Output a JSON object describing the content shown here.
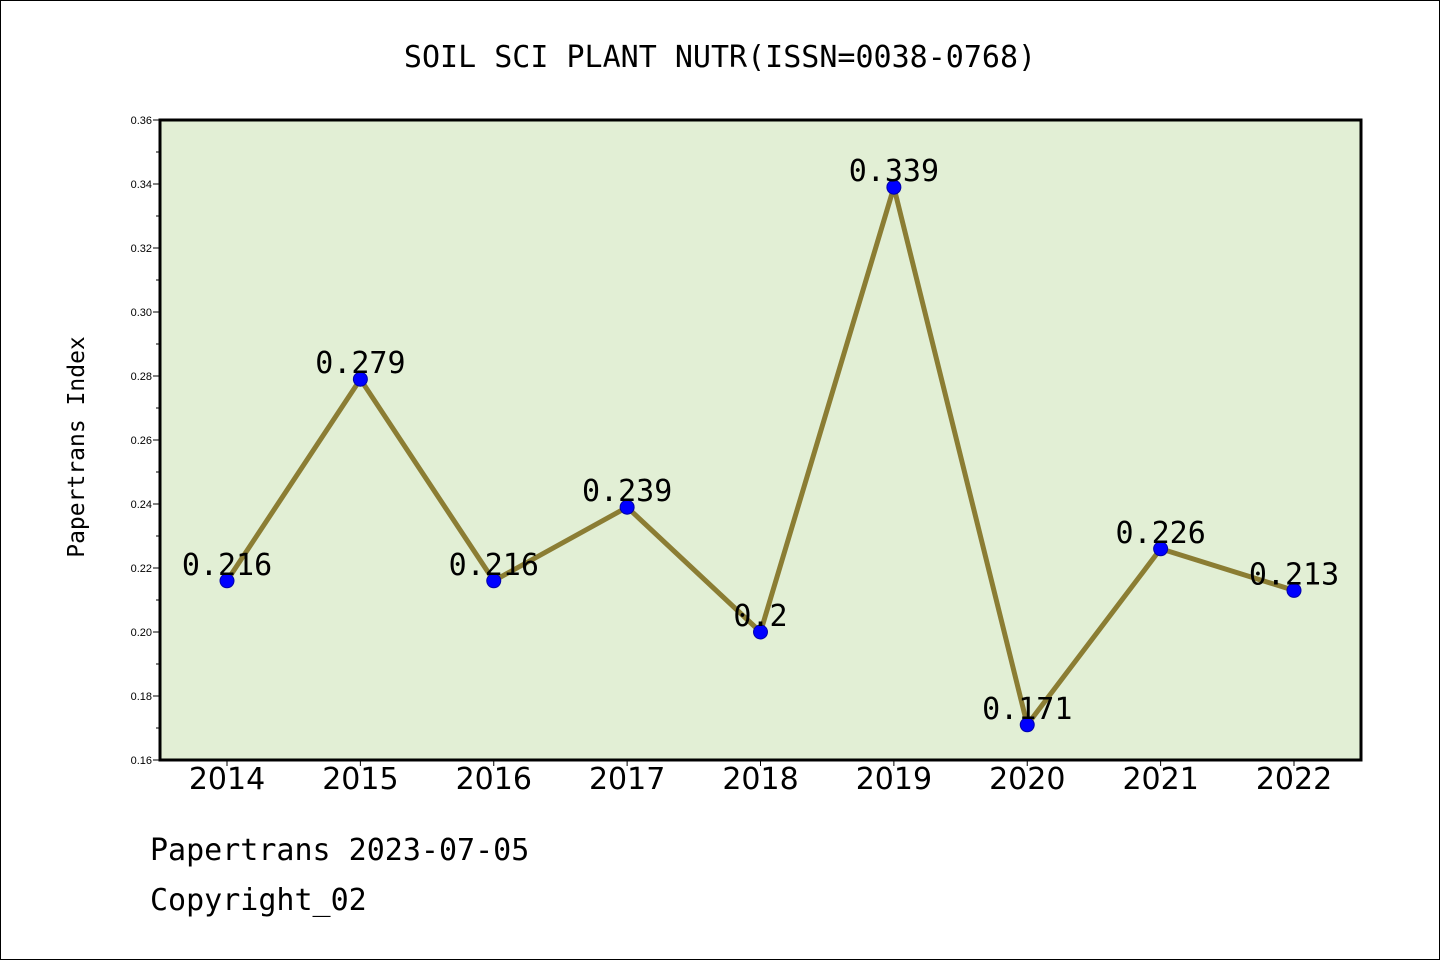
{
  "chart_data": {
    "type": "line",
    "title": "SOIL SCI PLANT NUTR(ISSN=0038-0768)",
    "xlabel": "",
    "ylabel": "Papertrans Index",
    "categories": [
      "2014",
      "2015",
      "2016",
      "2017",
      "2018",
      "2019",
      "2020",
      "2021",
      "2022"
    ],
    "values": [
      0.216,
      0.279,
      0.216,
      0.239,
      0.2,
      0.339,
      0.171,
      0.226,
      0.213
    ],
    "data_labels": [
      "0.216",
      "0.279",
      "0.216",
      "0.239",
      "0.2",
      "0.339",
      "0.171",
      "0.226",
      "0.213"
    ],
    "ylim": [
      0.16,
      0.36
    ],
    "yticks": [
      "0.16",
      "0.18",
      "0.20",
      "0.22",
      "0.24",
      "0.26",
      "0.28",
      "0.30",
      "0.32",
      "0.34",
      "0.36"
    ],
    "grid": false,
    "colors": {
      "plot_background": "#e2efd5",
      "line": "#8b7d33",
      "marker": "#0000ff"
    }
  },
  "footer": {
    "line1": "Papertrans 2023-07-05",
    "line2": "Copyright_02"
  }
}
